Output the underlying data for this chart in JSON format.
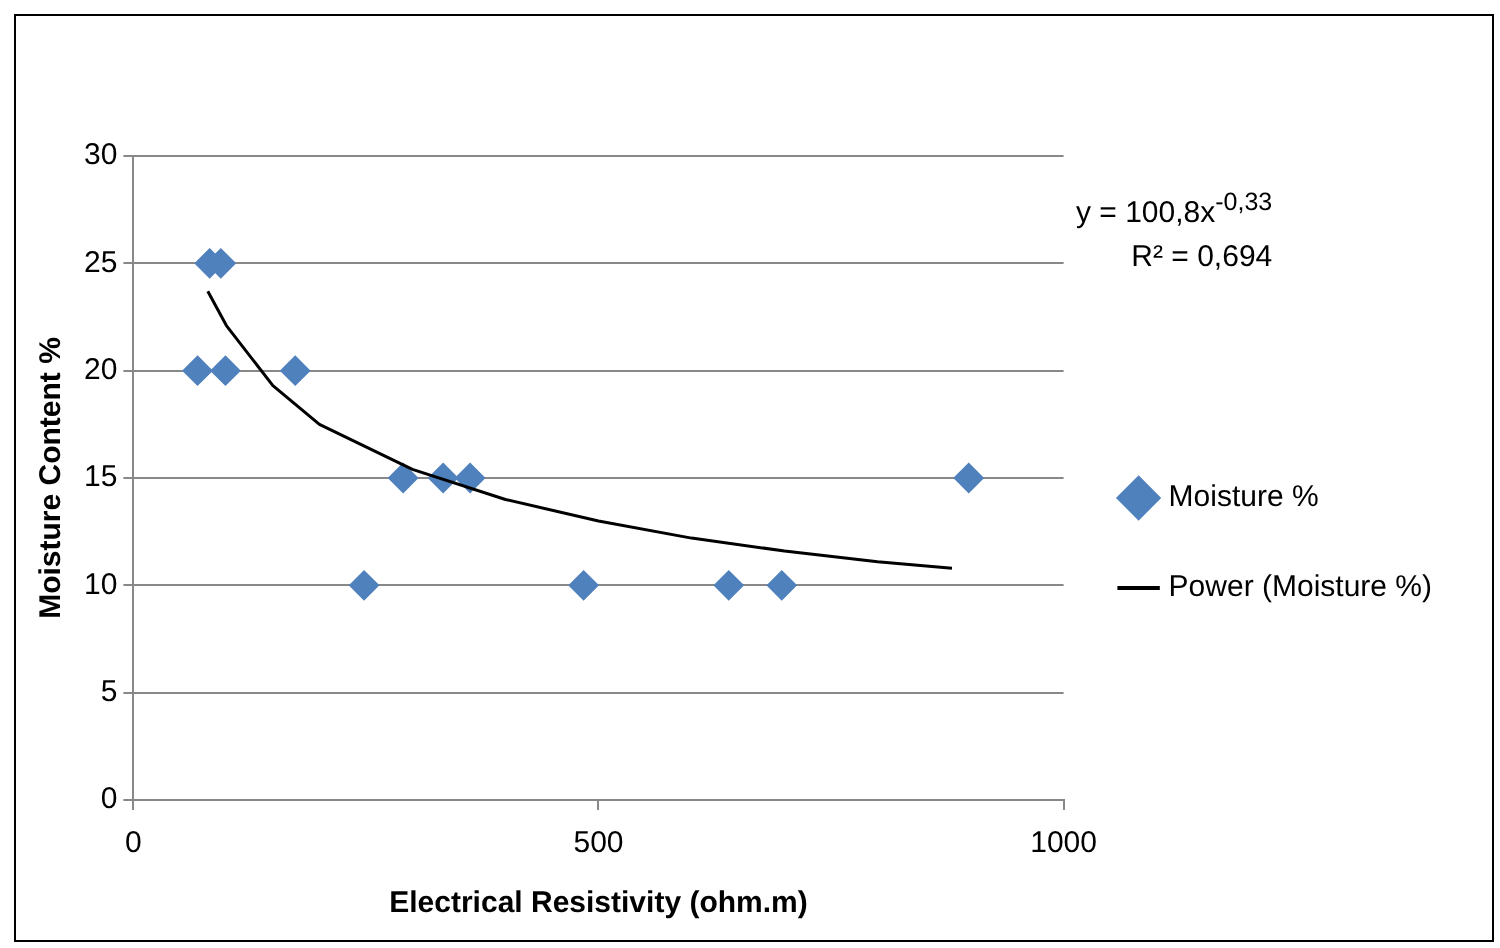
{
  "chart_data": {
    "type": "scatter",
    "xlabel": "Electrical Resistivity (ohm.m)",
    "ylabel": "Moisture Content %",
    "xlim": [
      0,
      1000
    ],
    "xticks": [
      0,
      500,
      1000
    ],
    "ylim": [
      0,
      30
    ],
    "yticks": [
      0,
      5,
      10,
      15,
      20,
      25,
      30
    ],
    "grid": "y",
    "legend": "right",
    "marker": "diamond",
    "series": [
      {
        "name": "Moisture %",
        "color": "#4f81bd",
        "x": [
          69,
          82,
          94,
          99,
          174,
          248,
          290,
          333,
          362,
          484,
          640,
          697,
          898
        ],
        "values": [
          20,
          25,
          25,
          20,
          20,
          10,
          15,
          15,
          15,
          10,
          10,
          10,
          15
        ]
      },
      {
        "name": "Power (Moisture %)",
        "type": "line",
        "color": "#000000",
        "marker": "none",
        "x": [
          80,
          100,
          150,
          200,
          300,
          400,
          500,
          600,
          700,
          800,
          880
        ],
        "values": [
          23.7,
          22.1,
          19.3,
          17.5,
          15.4,
          14.0,
          13.0,
          12.2,
          11.6,
          11.1,
          10.8
        ]
      }
    ],
    "annotations": [
      "y = 100,8x$^{-0,33}$",
      "R² = 0,694"
    ]
  }
}
